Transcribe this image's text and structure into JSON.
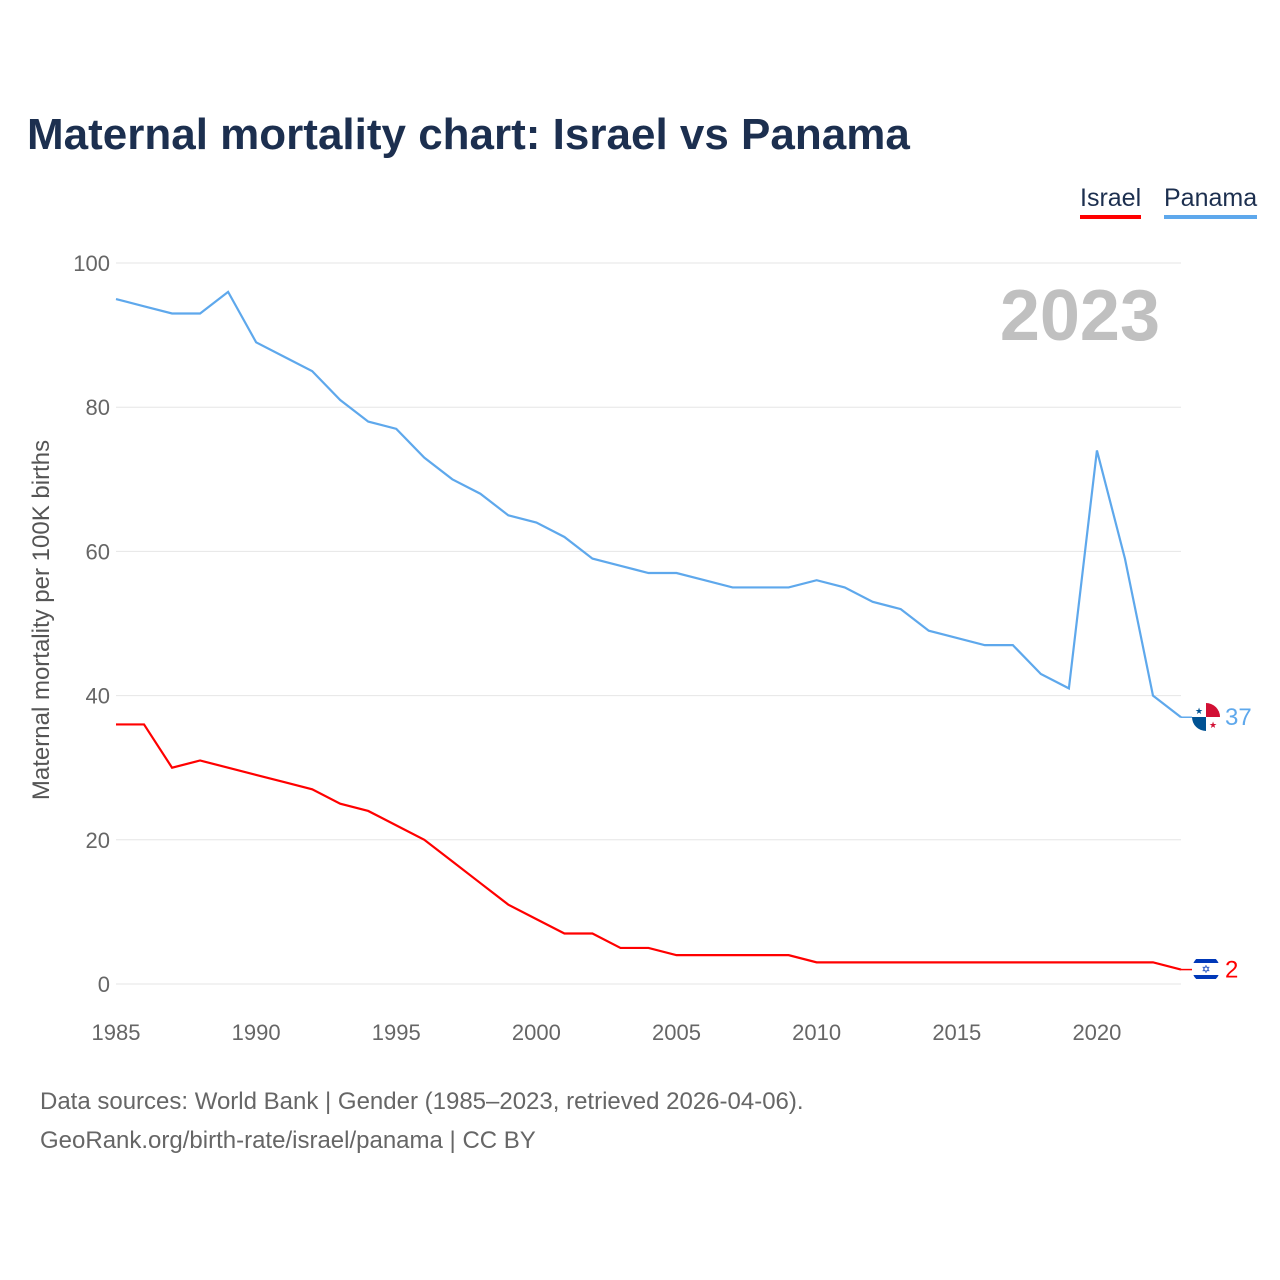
{
  "chart_data": {
    "type": "line",
    "title": "Maternal mortality chart: Israel vs Panama",
    "ylabel": "Maternal mortality per 100K births",
    "xlabel": "",
    "ylim": [
      0,
      100
    ],
    "xlim": [
      1985,
      2023
    ],
    "yticks": [
      0,
      20,
      40,
      60,
      80,
      100
    ],
    "xticks": [
      1985,
      1990,
      1995,
      2000,
      2005,
      2010,
      2015,
      2020
    ],
    "grid": true,
    "legend_position": "top-right",
    "year_label": "2023",
    "x": [
      1985,
      1986,
      1987,
      1988,
      1989,
      1990,
      1991,
      1992,
      1993,
      1994,
      1995,
      1996,
      1997,
      1998,
      1999,
      2000,
      2001,
      2002,
      2003,
      2004,
      2005,
      2006,
      2007,
      2008,
      2009,
      2010,
      2011,
      2012,
      2013,
      2014,
      2015,
      2016,
      2017,
      2018,
      2019,
      2020,
      2021,
      2022,
      2023
    ],
    "series": [
      {
        "name": "Israel",
        "color": "#ff0000",
        "end_label": "2",
        "values": [
          36,
          36,
          30,
          31,
          30,
          29,
          28,
          27,
          25,
          24,
          22,
          20,
          17,
          14,
          11,
          9,
          7,
          7,
          5,
          5,
          4,
          4,
          4,
          4,
          4,
          3,
          3,
          3,
          3,
          3,
          3,
          3,
          3,
          3,
          3,
          3,
          3,
          3,
          2
        ]
      },
      {
        "name": "Panama",
        "color": "#5ea8ec",
        "end_label": "37",
        "values": [
          95,
          94,
          93,
          93,
          96,
          89,
          87,
          85,
          81,
          78,
          77,
          73,
          70,
          68,
          65,
          64,
          62,
          59,
          58,
          57,
          57,
          56,
          55,
          55,
          55,
          56,
          55,
          53,
          52,
          49,
          48,
          47,
          47,
          43,
          41,
          74,
          59,
          40,
          37
        ]
      }
    ]
  },
  "footer": {
    "line1": "Data sources: World Bank | Gender (1985–2023, retrieved 2026-04-06).",
    "line2": "GeoRank.org/birth-rate/israel/panama | CC BY"
  }
}
